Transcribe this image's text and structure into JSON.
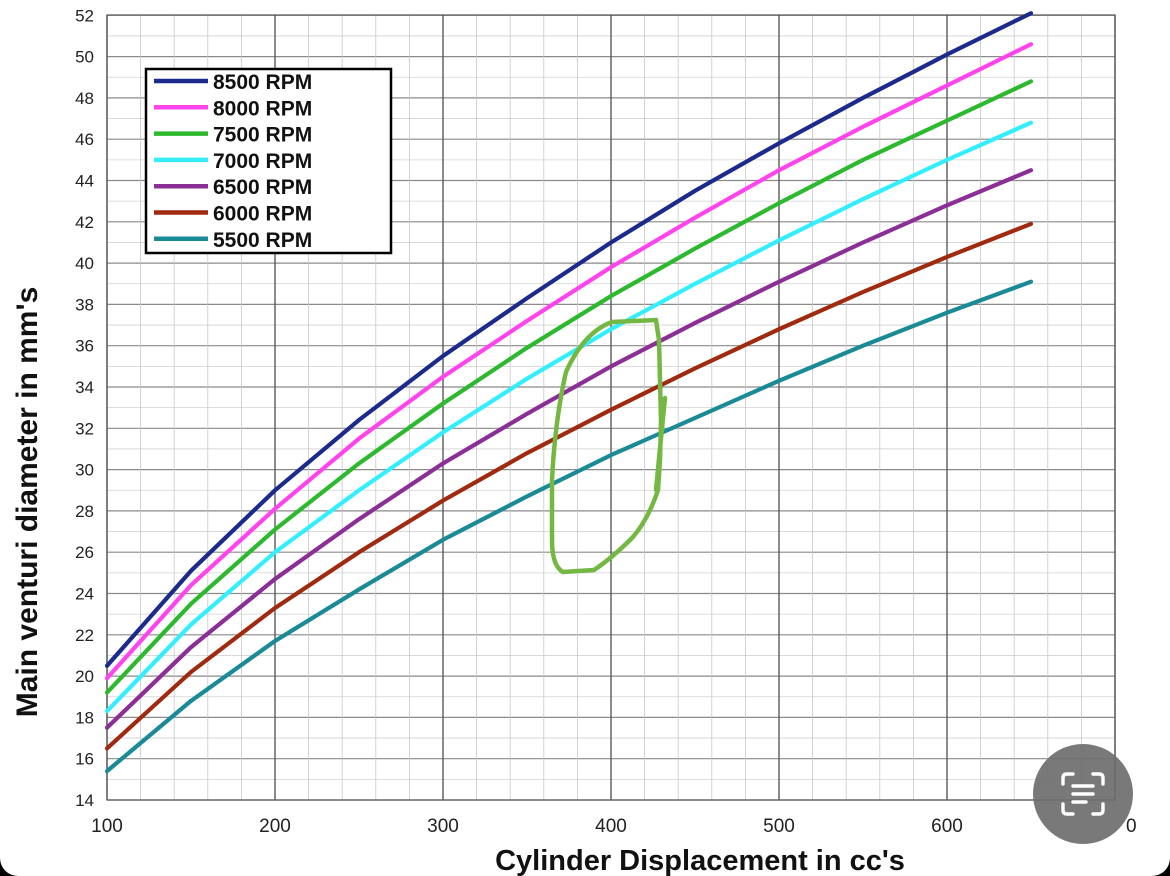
{
  "chart_data": {
    "type": "line",
    "xlabel": "Cylinder Displacement in cc's",
    "ylabel": "Main venturi diameter in mm's",
    "xlim": [
      100,
      700
    ],
    "ylim": [
      14,
      52
    ],
    "x_ticks": [
      "100",
      "200",
      "300",
      "400",
      "500",
      "600",
      "700"
    ],
    "y_ticks": [
      "14",
      "16",
      "18",
      "20",
      "22",
      "24",
      "26",
      "28",
      "30",
      "32",
      "34",
      "36",
      "38",
      "40",
      "42",
      "44",
      "46",
      "48",
      "50",
      "52"
    ],
    "x_tick_last_visible": "0",
    "grid": true,
    "legend_position": "top-left",
    "x": [
      100,
      150,
      200,
      250,
      300,
      350,
      400,
      450,
      500,
      550,
      600,
      650
    ],
    "series": [
      {
        "name": "8500 RPM",
        "color": "#1c2a8c",
        "values": [
          20.5,
          25.1,
          29.0,
          32.4,
          35.5,
          38.3,
          41.0,
          43.5,
          45.8,
          48.0,
          50.1,
          52.1
        ]
      },
      {
        "name": "8000 RPM",
        "color": "#ff44ee",
        "values": [
          19.9,
          24.4,
          28.1,
          31.5,
          34.5,
          37.2,
          39.8,
          42.2,
          44.5,
          46.6,
          48.6,
          50.6
        ]
      },
      {
        "name": "7500 RPM",
        "color": "#2db92d",
        "values": [
          19.2,
          23.5,
          27.1,
          30.3,
          33.2,
          35.9,
          38.4,
          40.7,
          42.9,
          45.0,
          46.9,
          48.8
        ]
      },
      {
        "name": "7000 RPM",
        "color": "#33eeff",
        "values": [
          18.3,
          22.5,
          26.0,
          29.0,
          31.8,
          34.4,
          36.8,
          39.0,
          41.1,
          43.1,
          45.0,
          46.8
        ]
      },
      {
        "name": "6500 RPM",
        "color": "#8b2f97",
        "values": [
          17.5,
          21.4,
          24.7,
          27.6,
          30.3,
          32.7,
          35.0,
          37.1,
          39.1,
          41.0,
          42.8,
          44.5
        ]
      },
      {
        "name": "6000 RPM",
        "color": "#a02a10",
        "values": [
          16.5,
          20.2,
          23.3,
          26.0,
          28.5,
          30.8,
          32.9,
          34.9,
          36.8,
          38.6,
          40.3,
          41.9
        ]
      },
      {
        "name": "5500 RPM",
        "color": "#1a8a96",
        "values": [
          15.4,
          18.8,
          21.7,
          24.2,
          26.6,
          28.7,
          30.7,
          32.5,
          34.3,
          36.0,
          37.6,
          39.1
        ]
      }
    ],
    "annotation": {
      "kind": "hand-drawn-circle",
      "color": "#74b843"
    }
  },
  "overlay": {
    "lens_button_icon": "text-scan-icon"
  }
}
